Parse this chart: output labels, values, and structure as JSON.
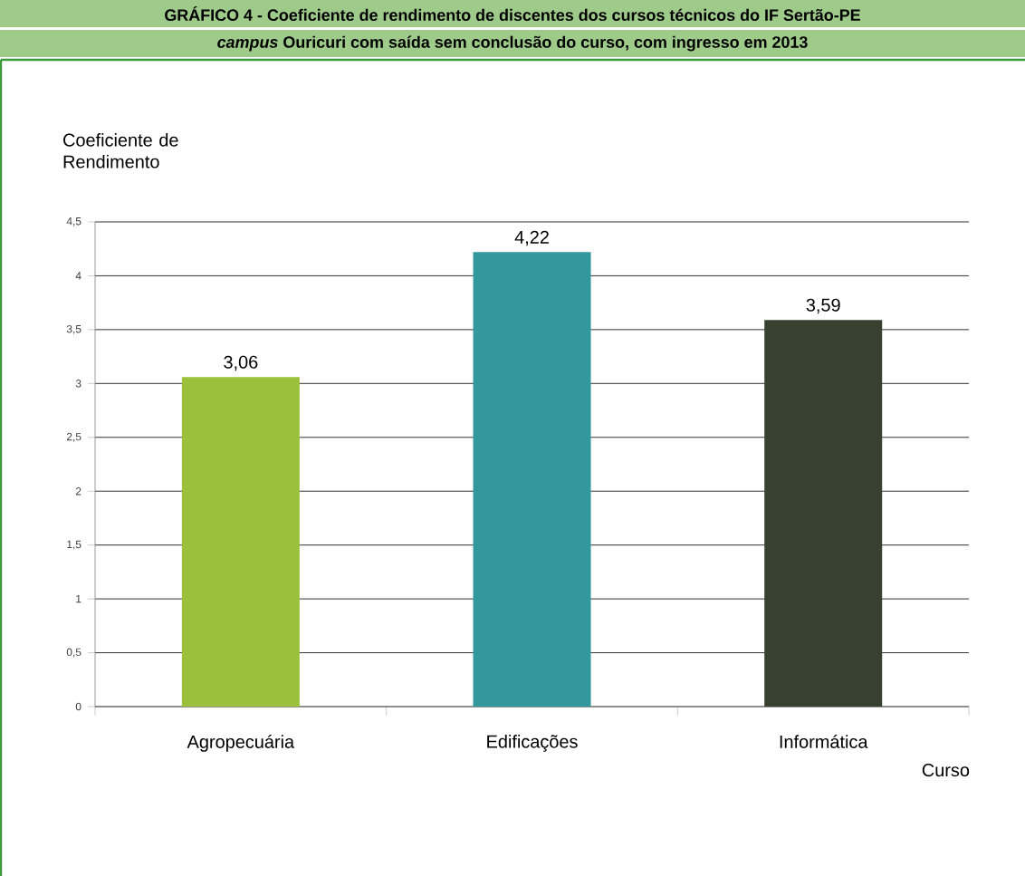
{
  "chart_data": {
    "type": "bar",
    "title": "GRÁFICO 4 - Coeficiente de rendimento de discentes dos cursos técnicos do IF Sertão-PE",
    "subtitle": "*campus* Ouricuri com saída sem conclusão do curso, com ingresso em 2013",
    "ylabel": "Coeficiente de Rendimento",
    "xlabel": "Curso",
    "categories": [
      "Agropecuária",
      "Edificações",
      "Informática"
    ],
    "values": [
      3.06,
      4.22,
      3.59
    ],
    "colors": [
      "#9bc13c",
      "#33989c",
      "#38412f"
    ],
    "value_labels": [
      "3,06",
      "4,22",
      "3,59"
    ],
    "ylim": [
      0,
      4.5
    ],
    "yticks": [
      0,
      {
        "value": 0.5,
        "label": "0,5"
      },
      1,
      {
        "value": 1.5,
        "label": "1,5"
      },
      2,
      {
        "value": 2.5,
        "label": "2,5"
      },
      3,
      {
        "value": 3.5,
        "label": "3,5"
      },
      4,
      {
        "value": 4.5,
        "label": "4,5"
      }
    ],
    "grid": "y"
  }
}
